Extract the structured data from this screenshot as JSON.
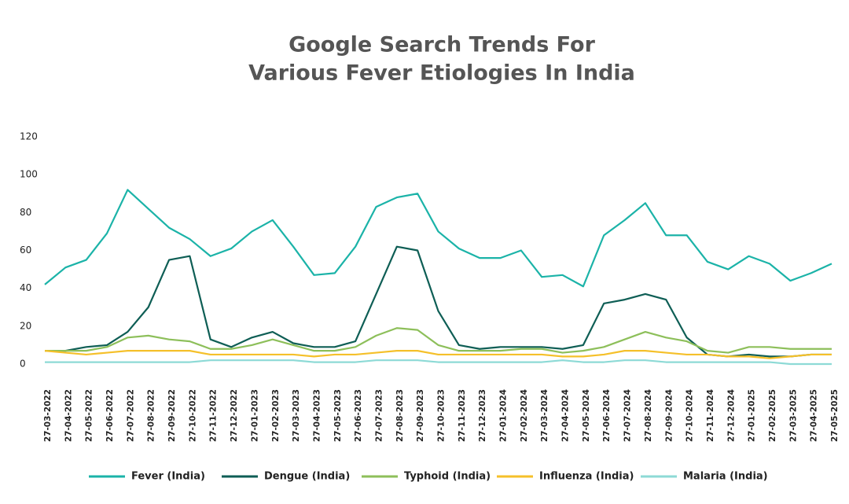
{
  "chart_data": {
    "type": "line",
    "title": [
      "Google Search Trends For",
      "Various Fever Etiologies In India"
    ],
    "categories": [
      "27-03-2022",
      "27-04-2022",
      "27-05-2022",
      "27-06-2022",
      "27-07-2022",
      "27-08-2022",
      "27-09-2022",
      "27-10-2022",
      "27-11-2022",
      "27-12-2022",
      "27-01-2023",
      "27-02-2023",
      "27-03-2023",
      "27-04-2023",
      "27-05-2023",
      "27-06-2023",
      "27-07-2023",
      "27-08-2023",
      "27-09-2023",
      "27-10-2023",
      "27-11-2023",
      "27-12-2023",
      "27-01-2024",
      "27-02-2024",
      "27-03-2024",
      "27-04-2024",
      "27-05-2024",
      "27-06-2024",
      "27-07-2024",
      "27-08-2024",
      "27-09-2024",
      "27-10-2024",
      "27-11-2024",
      "27-12-2024",
      "27-01-2025",
      "27-02-2025",
      "27-03-2025",
      "27-04-2025",
      "27-05-2025"
    ],
    "series": [
      {
        "name": "Fever (India)",
        "color": "#1bb3a8",
        "values": [
          42,
          51,
          55,
          69,
          92,
          82,
          72,
          66,
          57,
          61,
          70,
          76,
          62,
          47,
          48,
          62,
          83,
          88,
          90,
          70,
          61,
          56,
          56,
          60,
          46,
          47,
          41,
          68,
          76,
          85,
          68,
          68,
          54,
          50,
          57,
          53,
          44,
          48,
          53
        ]
      },
      {
        "name": "Dengue (India)",
        "color": "#0e5e55",
        "values": [
          7,
          7,
          9,
          10,
          17,
          30,
          55,
          57,
          13,
          9,
          14,
          17,
          11,
          9,
          9,
          12,
          37,
          62,
          60,
          28,
          10,
          8,
          9,
          9,
          9,
          8,
          10,
          32,
          34,
          37,
          34,
          14,
          5,
          4,
          5,
          4,
          4,
          5,
          5
        ]
      },
      {
        "name": "Typhoid (India)",
        "color": "#8dbf5a",
        "values": [
          7,
          7,
          7,
          9,
          14,
          15,
          13,
          12,
          8,
          8,
          10,
          13,
          10,
          7,
          7,
          9,
          15,
          19,
          18,
          10,
          7,
          7,
          7,
          8,
          8,
          6,
          7,
          9,
          13,
          17,
          14,
          12,
          7,
          6,
          9,
          9,
          8,
          8,
          8
        ]
      },
      {
        "name": "Influenza (India)",
        "color": "#f5c02a",
        "values": [
          7,
          6,
          5,
          6,
          7,
          7,
          7,
          7,
          5,
          5,
          5,
          5,
          5,
          4,
          5,
          5,
          6,
          7,
          7,
          5,
          5,
          5,
          5,
          5,
          5,
          4,
          4,
          5,
          7,
          7,
          6,
          5,
          5,
          4,
          4,
          3,
          4,
          5,
          5
        ]
      },
      {
        "name": "Malaria (India)",
        "color": "#8ddad6",
        "values": [
          1,
          1,
          1,
          1,
          1,
          1,
          1,
          1,
          2,
          2,
          2,
          2,
          2,
          1,
          1,
          1,
          2,
          2,
          2,
          1,
          1,
          1,
          1,
          1,
          1,
          2,
          1,
          1,
          2,
          2,
          1,
          1,
          1,
          1,
          1,
          1,
          0,
          0,
          0
        ]
      }
    ],
    "ylim": [
      0,
      120
    ],
    "yticks": [
      0,
      20,
      40,
      60,
      80,
      100,
      120
    ],
    "grid": false,
    "legend": "bottom"
  }
}
